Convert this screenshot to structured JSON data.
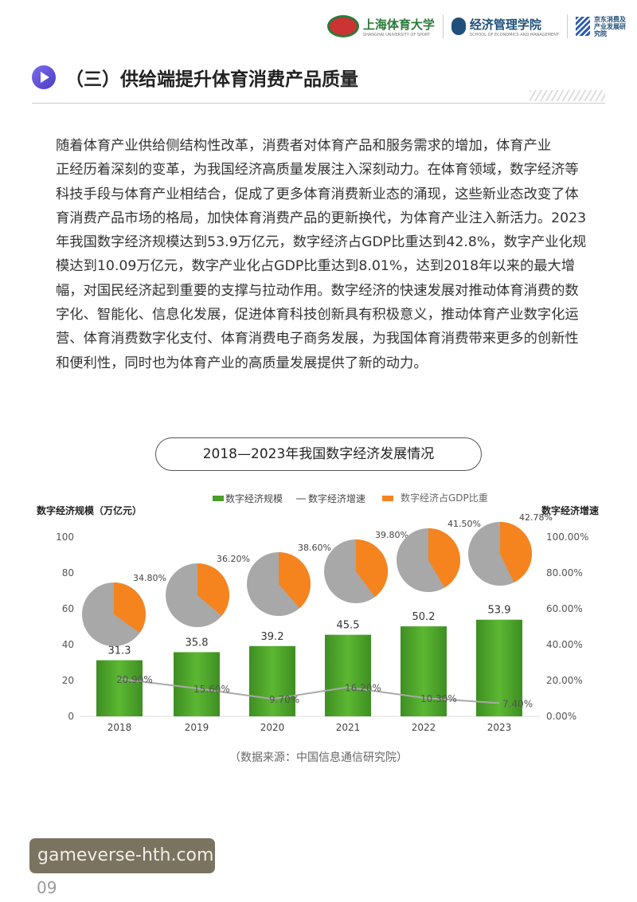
{
  "header": {
    "logos": [
      {
        "name": "上海体育大学",
        "sub": "SHANGHAI UNIVERSITY OF SPORT"
      },
      {
        "name": "经济管理学院",
        "sub": "SCHOOL OF ECONOMICS AND MANAGEMENT"
      },
      {
        "name": "京东消费及产业发展研究院"
      }
    ]
  },
  "section_title": "（三）供给端提升体育消费产品质量",
  "paragraph_lines": [
    "随着体育产业供给侧结构性改革，消费者对体育产品和服务需求的增加，体育产业",
    "正经历着深刻的变革，为我国经济高质量发展注入深刻动力。在体育领域，数字经济等",
    "科技手段与体育产业相结合，促成了更多体育消费新业态的涌现，这些新业态改变了体",
    "育消费产品市场的格局，加快体育消费产品的更新换代，为体育产业注入新活力。2023",
    "年我国数字经济规模达到53.9万亿元，数字经济占GDP比重达到42.8%，数字产业化规",
    "模达到10.09万亿元，数字产业化占GDP比重达到8.01%，达到2018年以来的最大增",
    "幅，对国民经济起到重要的支撑与拉动作用。数字经济的快速发展对推动体育消费的数",
    "字化、智能化、信息化发展，促进体育科技创新具有积极意义，推动体育产业数字化运",
    "营、体育消费数字化支付、体育消费电子商务发展，为我国体育消费带来更多的创新性",
    "和便利性，同时也为体育产业的高质量发展提供了新的动力。"
  ],
  "chart_data": {
    "type": "bar",
    "title": "2018—2023年我国数字经济发展情况",
    "categories": [
      "2018",
      "2019",
      "2020",
      "2021",
      "2022",
      "2023"
    ],
    "ylabel": "数字经济规模（万亿元）",
    "y2label": "数字经济增速",
    "ylim": [
      0,
      100
    ],
    "yticks": [
      "0",
      "20",
      "40",
      "60",
      "80",
      "100"
    ],
    "y2lim": [
      0,
      100
    ],
    "y2ticks": [
      "0.00%",
      "20.00%",
      "40.00%",
      "60.00%",
      "80.00%",
      "100.00%"
    ],
    "legend_position": "top",
    "series": [
      {
        "name": "数字经济规模",
        "type": "bar",
        "values": [
          31.3,
          35.8,
          39.2,
          45.5,
          50.2,
          53.9
        ],
        "labels": [
          "31.3",
          "35.8",
          "39.2",
          "45.5",
          "50.2",
          "53.9"
        ],
        "color": "#4a9e2a"
      },
      {
        "name": "数字经济增速",
        "type": "line",
        "values": [
          20.9,
          15.6,
          9.7,
          16.2,
          10.3,
          7.4
        ],
        "labels": [
          "20.90%",
          "15.60%",
          "9.70%",
          "16.20%",
          "10.30%",
          "7.40%"
        ],
        "color": "#aaaaaa"
      },
      {
        "name": "数字经济占GDP比重",
        "type": "pie",
        "values": [
          34.8,
          36.2,
          38.6,
          39.8,
          41.5,
          42.78
        ],
        "labels": [
          "34.80%",
          "36.20%",
          "38.60%",
          "39.80%",
          "41.50%",
          "42.78%"
        ],
        "color": "#f5841f",
        "rest_color": "#a8a8a8"
      }
    ]
  },
  "source_note": "（数据来源：中国信息通信研究院）",
  "page_number": "09",
  "watermark": "gameverse-hth.com"
}
